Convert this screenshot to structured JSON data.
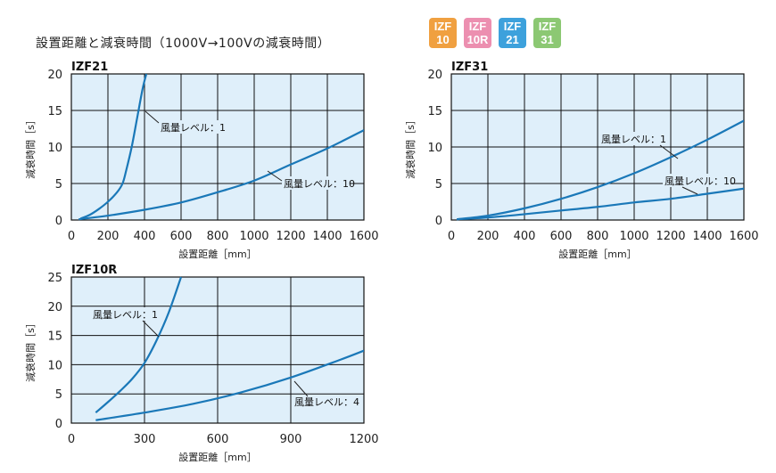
{
  "title": "設置距離と減衰時間（1000V→100Vの減衰時間）",
  "legend": [
    {
      "line1": "IZF",
      "line2": "10",
      "color": "#f0a040"
    },
    {
      "line1": "IZF",
      "line2": "10R",
      "color": "#ec8fb0"
    },
    {
      "line1": "IZF",
      "line2": "21",
      "color": "#3da1dc"
    },
    {
      "line1": "IZF",
      "line2": "31",
      "color": "#8cc873"
    }
  ],
  "colors": {
    "curve": "#1a78b8",
    "grid": "#111111",
    "plot_bg": "#dfeffa"
  },
  "chart_data": [
    {
      "type": "line",
      "title": "IZF21",
      "xlabel": "設置距離［mm］",
      "ylabel": "減衰時間［s］",
      "xlim": [
        0,
        1600
      ],
      "ylim": [
        0,
        20
      ],
      "xticks": [
        0,
        200,
        400,
        600,
        800,
        1000,
        1200,
        1400,
        1600
      ],
      "yticks": [
        0,
        5,
        10,
        15,
        20
      ],
      "grid": true,
      "series": [
        {
          "name": "風量レベル：1",
          "x": [
            50,
            100,
            150,
            200,
            250,
            280,
            300,
            330,
            360,
            390,
            410
          ],
          "y": [
            0.2,
            0.7,
            1.5,
            2.5,
            3.8,
            5.0,
            6.8,
            10.0,
            14.0,
            18.0,
            20.0
          ]
        },
        {
          "name": "風量レベル：10",
          "x": [
            40,
            200,
            400,
            600,
            800,
            1000,
            1200,
            1400,
            1600
          ],
          "y": [
            0.1,
            0.6,
            1.4,
            2.4,
            3.8,
            5.4,
            7.6,
            9.8,
            12.3
          ]
        }
      ]
    },
    {
      "type": "line",
      "title": "IZF31",
      "xlabel": "設置距離［mm］",
      "ylabel": "減衰時間［s］",
      "xlim": [
        0,
        1600
      ],
      "ylim": [
        0,
        20
      ],
      "xticks": [
        0,
        200,
        400,
        600,
        800,
        1000,
        1200,
        1400,
        1600
      ],
      "yticks": [
        0,
        5,
        10,
        15,
        20
      ],
      "grid": true,
      "series": [
        {
          "name": "風量レベル：1",
          "x": [
            30,
            200,
            400,
            600,
            800,
            1000,
            1200,
            1400,
            1600
          ],
          "y": [
            0.1,
            0.6,
            1.6,
            2.9,
            4.5,
            6.4,
            8.6,
            11.0,
            13.6
          ]
        },
        {
          "name": "風量レベル：10",
          "x": [
            30,
            200,
            400,
            600,
            800,
            1000,
            1200,
            1400,
            1600
          ],
          "y": [
            0.1,
            0.35,
            0.8,
            1.3,
            1.8,
            2.4,
            2.9,
            3.6,
            4.3
          ]
        }
      ]
    },
    {
      "type": "line",
      "title": "IZF10R",
      "xlabel": "設置距離［mm］",
      "ylabel": "減衰時間［s］",
      "xlim": [
        0,
        1200
      ],
      "ylim": [
        0,
        25
      ],
      "xticks": [
        0,
        300,
        600,
        900,
        1200
      ],
      "yticks": [
        0,
        5,
        10,
        15,
        20,
        25
      ],
      "grid": true,
      "series": [
        {
          "name": "風量レベル：1",
          "x": [
            100,
            150,
            200,
            250,
            300,
            350,
            400,
            450
          ],
          "y": [
            1.8,
            3.6,
            5.5,
            7.6,
            10.3,
            14.2,
            19.0,
            25.0
          ]
        },
        {
          "name": "風量レベル：4",
          "x": [
            100,
            300,
            500,
            700,
            900,
            1100,
            1200
          ],
          "y": [
            0.5,
            1.8,
            3.3,
            5.3,
            7.8,
            10.8,
            12.4
          ]
        }
      ]
    }
  ]
}
